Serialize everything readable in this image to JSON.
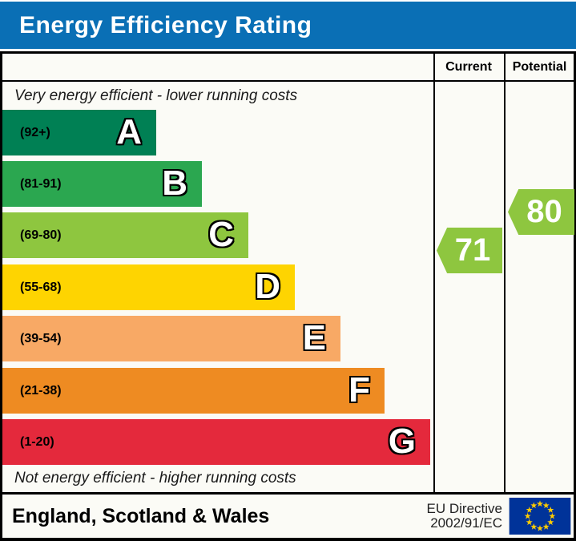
{
  "title": "Energy Efficiency Rating",
  "colors": {
    "title_bg": "#0a6fb5",
    "title_text": "#ffffff",
    "border": "#000000",
    "arrow": "#8ec63f",
    "eu_flag_bg": "#003399",
    "eu_flag_star": "#ffcc00"
  },
  "columns": {
    "current": "Current",
    "potential": "Potential"
  },
  "captions": {
    "top": "Very energy efficient - lower running costs",
    "bottom": "Not energy efficient - higher running costs"
  },
  "bands": [
    {
      "letter": "A",
      "range": "(92+)",
      "color": "#008054"
    },
    {
      "letter": "B",
      "range": "(81-91)",
      "color": "#2ba750"
    },
    {
      "letter": "C",
      "range": "(69-80)",
      "color": "#8ec63f"
    },
    {
      "letter": "D",
      "range": "(55-68)",
      "color": "#fed401"
    },
    {
      "letter": "E",
      "range": "(39-54)",
      "color": "#f8a965"
    },
    {
      "letter": "F",
      "range": "(21-38)",
      "color": "#ee8b22"
    },
    {
      "letter": "G",
      "range": "(1-20)",
      "color": "#e4293c"
    }
  ],
  "ratings": {
    "current": {
      "value": "71",
      "band": "C"
    },
    "potential": {
      "value": "80",
      "band": "C"
    }
  },
  "footer": {
    "region": "England, Scotland & Wales",
    "directive_line1": "EU Directive",
    "directive_line2": "2002/91/EC",
    "flag_icon": "eu-flag-icon"
  },
  "chart_data": {
    "type": "bar",
    "title": "Energy Efficiency Rating",
    "columns": [
      "Current",
      "Potential"
    ],
    "categories": [
      "A",
      "B",
      "C",
      "D",
      "E",
      "F",
      "G"
    ],
    "category_ranges": [
      "(92+)",
      "(81-91)",
      "(69-80)",
      "(55-68)",
      "(39-54)",
      "(21-38)",
      "(1-20)"
    ],
    "band_numeric_ranges": [
      [
        92,
        100
      ],
      [
        81,
        91
      ],
      [
        69,
        80
      ],
      [
        55,
        68
      ],
      [
        39,
        54
      ],
      [
        21,
        38
      ],
      [
        1,
        20
      ]
    ],
    "band_colors": [
      "#008054",
      "#2ba750",
      "#8ec63f",
      "#fed401",
      "#f8a965",
      "#ee8b22",
      "#e4293c"
    ],
    "bar_relative_widths": [
      0.36,
      0.466,
      0.575,
      0.683,
      0.79,
      0.893,
      1.0
    ],
    "scale_min": 1,
    "scale_max": 100,
    "current_rating": 71,
    "current_band": "C",
    "potential_rating": 80,
    "potential_band": "C",
    "annotations": [
      "Very energy efficient - lower running costs",
      "Not energy efficient - higher running costs"
    ],
    "footnote": "England, Scotland & Wales | EU Directive 2002/91/EC"
  }
}
